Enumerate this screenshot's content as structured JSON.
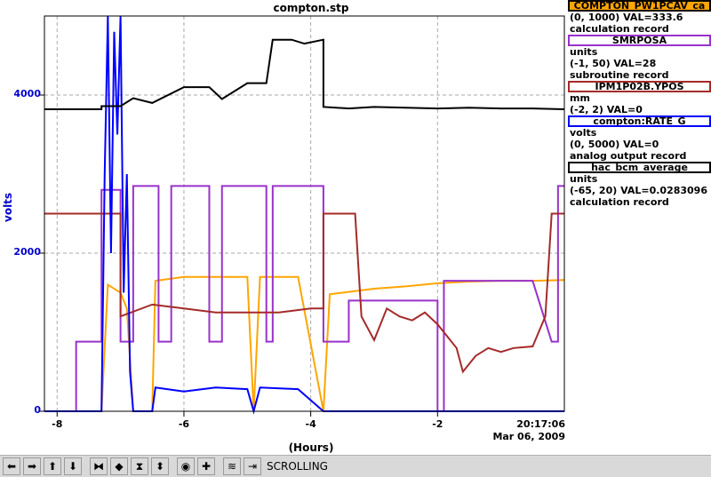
{
  "chart_data": {
    "type": "line",
    "title": "compton.stp",
    "xlabel": "(Hours)",
    "ylabel": "volts",
    "xlim": [
      -8.2,
      0
    ],
    "ylim": [
      0,
      5000
    ],
    "xticks": [
      -8,
      -6,
      -4,
      -2
    ],
    "xtick_labels": [
      "-8",
      "-6",
      "-4",
      "-2"
    ],
    "yticks": [
      0,
      2000,
      4000
    ],
    "ytick_labels": [
      "0",
      "2000",
      "4000"
    ],
    "grid": true,
    "legend_position": "right",
    "timestamp_time": "20:17:06",
    "timestamp_date": "Mar 06, 2009",
    "series": [
      {
        "name": "COMPTON_PW1PCAV_ca",
        "color": "#ffa500",
        "range_text": "(0, 1000) VAL=333.6",
        "type_text": "calculation record",
        "points": [
          [
            -8.2,
            0
          ],
          [
            -7.3,
            0
          ],
          [
            -7.2,
            1600
          ],
          [
            -7.0,
            1500
          ],
          [
            -6.9,
            1300
          ],
          [
            -6.8,
            0
          ],
          [
            -6.5,
            0
          ],
          [
            -6.45,
            1650
          ],
          [
            -6.0,
            1700
          ],
          [
            -5.5,
            1700
          ],
          [
            -5.0,
            1700
          ],
          [
            -4.9,
            0
          ],
          [
            -4.8,
            1700
          ],
          [
            -4.2,
            1700
          ],
          [
            -3.8,
            0
          ],
          [
            -3.7,
            1480
          ],
          [
            -3.5,
            1500
          ],
          [
            -3.0,
            1550
          ],
          [
            -2.5,
            1580
          ],
          [
            -2.0,
            1620
          ],
          [
            -1.5,
            1640
          ],
          [
            -1.0,
            1650
          ],
          [
            -0.5,
            1650
          ],
          [
            0,
            1660
          ]
        ]
      },
      {
        "name": "SMRPOSA",
        "color": "#9932cc",
        "range_text": "(-1, 50) VAL=28",
        "type_text": "subroutine record",
        "points": [
          [
            -8.2,
            0
          ],
          [
            -7.7,
            0
          ],
          [
            -7.7,
            880
          ],
          [
            -7.3,
            880
          ],
          [
            -7.3,
            2800
          ],
          [
            -7.0,
            2800
          ],
          [
            -7.0,
            880
          ],
          [
            -6.8,
            880
          ],
          [
            -6.8,
            2850
          ],
          [
            -6.4,
            2850
          ],
          [
            -6.4,
            880
          ],
          [
            -6.2,
            880
          ],
          [
            -6.2,
            2850
          ],
          [
            -5.6,
            2850
          ],
          [
            -5.6,
            880
          ],
          [
            -5.4,
            880
          ],
          [
            -5.4,
            2850
          ],
          [
            -4.7,
            2850
          ],
          [
            -4.7,
            880
          ],
          [
            -4.6,
            880
          ],
          [
            -4.6,
            2850
          ],
          [
            -3.8,
            2850
          ],
          [
            -3.8,
            880
          ],
          [
            -3.4,
            880
          ],
          [
            -3.4,
            1400
          ],
          [
            -2.0,
            1400
          ],
          [
            -2.0,
            0
          ],
          [
            -1.9,
            0
          ],
          [
            -1.9,
            1650
          ],
          [
            -0.5,
            1650
          ],
          [
            -0.2,
            880
          ],
          [
            -0.1,
            880
          ],
          [
            -0.1,
            2850
          ],
          [
            0,
            2850
          ]
        ]
      },
      {
        "name": "IPM1P02B.YPOS",
        "color": "#a52a2a",
        "range_text": "(-2, 2) VAL=0",
        "type_text": "",
        "unit_text": "mm",
        "points": [
          [
            -8.2,
            2500
          ],
          [
            -7.0,
            2500
          ],
          [
            -7.0,
            1200
          ],
          [
            -6.5,
            1350
          ],
          [
            -6.0,
            1300
          ],
          [
            -5.5,
            1250
          ],
          [
            -5.0,
            1250
          ],
          [
            -4.5,
            1250
          ],
          [
            -4.0,
            1300
          ],
          [
            -3.8,
            1300
          ],
          [
            -3.8,
            2500
          ],
          [
            -3.3,
            2500
          ],
          [
            -3.2,
            1200
          ],
          [
            -3.0,
            900
          ],
          [
            -2.8,
            1300
          ],
          [
            -2.6,
            1200
          ],
          [
            -2.4,
            1150
          ],
          [
            -2.2,
            1250
          ],
          [
            -2.0,
            1100
          ],
          [
            -1.9,
            1000
          ],
          [
            -1.7,
            800
          ],
          [
            -1.6,
            500
          ],
          [
            -1.4,
            700
          ],
          [
            -1.2,
            800
          ],
          [
            -1.0,
            750
          ],
          [
            -0.8,
            800
          ],
          [
            -0.5,
            820
          ],
          [
            -0.3,
            1200
          ],
          [
            -0.2,
            2500
          ],
          [
            0,
            2500
          ]
        ]
      },
      {
        "name": "compton:RATE_G",
        "color": "#0000ff",
        "range_text": "(0, 5000) VAL=0",
        "type_text": "analog output record",
        "unit_text": "volts",
        "points": [
          [
            -8.2,
            0
          ],
          [
            -7.3,
            0
          ],
          [
            -7.25,
            3000
          ],
          [
            -7.2,
            5000
          ],
          [
            -7.15,
            2000
          ],
          [
            -7.1,
            4800
          ],
          [
            -7.05,
            3500
          ],
          [
            -7.0,
            5000
          ],
          [
            -6.95,
            1500
          ],
          [
            -6.9,
            3000
          ],
          [
            -6.85,
            500
          ],
          [
            -6.8,
            0
          ],
          [
            -6.5,
            0
          ],
          [
            -6.45,
            300
          ],
          [
            -6.0,
            250
          ],
          [
            -5.5,
            300
          ],
          [
            -5.0,
            280
          ],
          [
            -4.9,
            0
          ],
          [
            -4.8,
            300
          ],
          [
            -4.2,
            280
          ],
          [
            -3.8,
            0
          ],
          [
            0,
            0
          ]
        ]
      },
      {
        "name": "hac_bcm_average",
        "color": "#000000",
        "range_text": "(-65, 20) VAL=0.0283096",
        "type_text": "calculation record",
        "unit_text": "units",
        "points": [
          [
            -8.2,
            3820
          ],
          [
            -7.3,
            3820
          ],
          [
            -7.3,
            3860
          ],
          [
            -7.0,
            3860
          ],
          [
            -6.8,
            3960
          ],
          [
            -6.5,
            3900
          ],
          [
            -6.0,
            4100
          ],
          [
            -5.6,
            4100
          ],
          [
            -5.4,
            3950
          ],
          [
            -5.0,
            4150
          ],
          [
            -4.7,
            4150
          ],
          [
            -4.6,
            4700
          ],
          [
            -4.3,
            4700
          ],
          [
            -4.1,
            4650
          ],
          [
            -3.8,
            4700
          ],
          [
            -3.8,
            3850
          ],
          [
            -3.4,
            3830
          ],
          [
            -3.0,
            3850
          ],
          [
            -2.5,
            3840
          ],
          [
            -2.0,
            3830
          ],
          [
            -1.5,
            3840
          ],
          [
            -1.0,
            3830
          ],
          [
            -0.5,
            3830
          ],
          [
            0,
            3820
          ]
        ]
      }
    ]
  },
  "legend": [
    {
      "label": "COMPTON_PW1PCAV_ca",
      "color": "#ffa500",
      "lines": [
        "(0, 1000) VAL=333.6",
        "calculation record"
      ]
    },
    {
      "label": "SMRPOSA",
      "color": "#9932cc",
      "lines": [
        "units",
        "(-1, 50) VAL=28",
        "subroutine record"
      ]
    },
    {
      "label": "IPM1P02B.YPOS",
      "color": "#a52a2a",
      "lines": [
        "mm",
        "(-2, 2) VAL=0"
      ]
    },
    {
      "label": "compton:RATE_G",
      "color": "#0000ff",
      "lines": [
        "volts",
        "(0, 5000) VAL=0",
        "analog output record"
      ]
    },
    {
      "label": "hac_bcm_average",
      "color": "#000000",
      "lines": [
        "units",
        "(-65, 20) VAL=0.0283096",
        "calculation record"
      ]
    }
  ],
  "toolbar": {
    "status": "SCROLLING",
    "buttons": [
      {
        "icon": "arrow-left-icon",
        "glyph": "⬅"
      },
      {
        "icon": "arrow-right-icon",
        "glyph": "➡"
      },
      {
        "icon": "arrow-up-icon",
        "glyph": "⬆"
      },
      {
        "icon": "arrow-down-icon",
        "glyph": "⬇"
      },
      {
        "icon": "zoom-in-horizontal-icon",
        "glyph": "⧓"
      },
      {
        "icon": "zoom-out-horizontal-icon",
        "glyph": "◆"
      },
      {
        "icon": "zoom-in-vertical-icon",
        "glyph": "⧗"
      },
      {
        "icon": "zoom-out-vertical-icon",
        "glyph": "⬍"
      },
      {
        "icon": "autoscale-icon",
        "glyph": "◉"
      },
      {
        "icon": "add-icon",
        "glyph": "✚"
      },
      {
        "icon": "style-icon",
        "glyph": "≋"
      },
      {
        "icon": "scroll-mode-icon",
        "glyph": "⇥"
      }
    ]
  }
}
